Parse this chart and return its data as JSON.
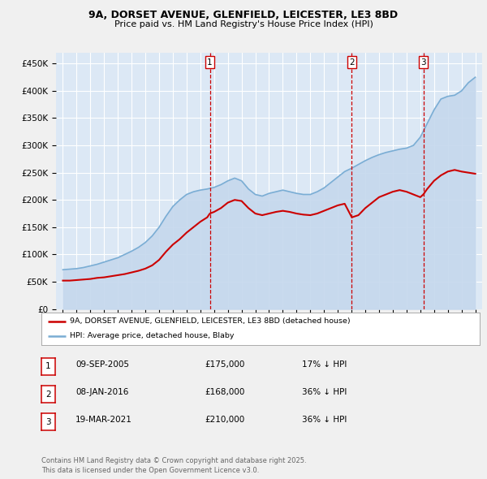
{
  "title1": "9A, DORSET AVENUE, GLENFIELD, LEICESTER, LE3 8BD",
  "title2": "Price paid vs. HM Land Registry's House Price Index (HPI)",
  "ylim": [
    0,
    470000
  ],
  "yticks": [
    0,
    50000,
    100000,
    150000,
    200000,
    250000,
    300000,
    350000,
    400000,
    450000
  ],
  "xlim_start": 1994.5,
  "xlim_end": 2025.5,
  "bg_color": "#dce8f5",
  "fig_bg": "#f0f0f0",
  "grid_color": "#ffffff",
  "red_line_color": "#cc0000",
  "blue_line_color": "#7aadd4",
  "blue_fill_color": "#c5d8ed",
  "vline_color": "#cc0000",
  "vline_dates": [
    2005.69,
    2016.02,
    2021.22
  ],
  "vline_labels": [
    "1",
    "2",
    "3"
  ],
  "legend_label_red": "9A, DORSET AVENUE, GLENFIELD, LEICESTER, LE3 8BD (detached house)",
  "legend_label_blue": "HPI: Average price, detached house, Blaby",
  "table_data": [
    [
      "1",
      "09-SEP-2005",
      "£175,000",
      "17% ↓ HPI"
    ],
    [
      "2",
      "08-JAN-2016",
      "£168,000",
      "36% ↓ HPI"
    ],
    [
      "3",
      "19-MAR-2021",
      "£210,000",
      "36% ↓ HPI"
    ]
  ],
  "footer": "Contains HM Land Registry data © Crown copyright and database right 2025.\nThis data is licensed under the Open Government Licence v3.0.",
  "red_prices": [
    [
      1995.0,
      52000
    ],
    [
      1995.5,
      52000
    ],
    [
      1996.0,
      53000
    ],
    [
      1996.5,
      54000
    ],
    [
      1997.0,
      55000
    ],
    [
      1997.5,
      57000
    ],
    [
      1998.0,
      58000
    ],
    [
      1998.5,
      60000
    ],
    [
      1999.0,
      62000
    ],
    [
      1999.5,
      64000
    ],
    [
      2000.0,
      67000
    ],
    [
      2000.5,
      70000
    ],
    [
      2001.0,
      74000
    ],
    [
      2001.5,
      80000
    ],
    [
      2002.0,
      90000
    ],
    [
      2002.5,
      105000
    ],
    [
      2003.0,
      118000
    ],
    [
      2003.5,
      128000
    ],
    [
      2004.0,
      140000
    ],
    [
      2004.5,
      150000
    ],
    [
      2005.0,
      160000
    ],
    [
      2005.5,
      168000
    ],
    [
      2005.69,
      175000
    ],
    [
      2006.0,
      178000
    ],
    [
      2006.5,
      185000
    ],
    [
      2007.0,
      195000
    ],
    [
      2007.5,
      200000
    ],
    [
      2008.0,
      198000
    ],
    [
      2008.5,
      185000
    ],
    [
      2009.0,
      175000
    ],
    [
      2009.5,
      172000
    ],
    [
      2010.0,
      175000
    ],
    [
      2010.5,
      178000
    ],
    [
      2011.0,
      180000
    ],
    [
      2011.5,
      178000
    ],
    [
      2012.0,
      175000
    ],
    [
      2012.5,
      173000
    ],
    [
      2013.0,
      172000
    ],
    [
      2013.5,
      175000
    ],
    [
      2014.0,
      180000
    ],
    [
      2014.5,
      185000
    ],
    [
      2015.0,
      190000
    ],
    [
      2015.5,
      193000
    ],
    [
      2016.02,
      168000
    ],
    [
      2016.5,
      172000
    ],
    [
      2017.0,
      185000
    ],
    [
      2017.5,
      195000
    ],
    [
      2018.0,
      205000
    ],
    [
      2018.5,
      210000
    ],
    [
      2019.0,
      215000
    ],
    [
      2019.5,
      218000
    ],
    [
      2020.0,
      215000
    ],
    [
      2020.5,
      210000
    ],
    [
      2021.0,
      205000
    ],
    [
      2021.22,
      210000
    ],
    [
      2021.5,
      220000
    ],
    [
      2022.0,
      235000
    ],
    [
      2022.5,
      245000
    ],
    [
      2023.0,
      252000
    ],
    [
      2023.5,
      255000
    ],
    [
      2024.0,
      252000
    ],
    [
      2024.5,
      250000
    ],
    [
      2025.0,
      248000
    ]
  ],
  "blue_prices": [
    [
      1995.0,
      72000
    ],
    [
      1995.5,
      73000
    ],
    [
      1996.0,
      74000
    ],
    [
      1996.5,
      76000
    ],
    [
      1997.0,
      79000
    ],
    [
      1997.5,
      82000
    ],
    [
      1998.0,
      86000
    ],
    [
      1998.5,
      90000
    ],
    [
      1999.0,
      94000
    ],
    [
      1999.5,
      100000
    ],
    [
      2000.0,
      106000
    ],
    [
      2000.5,
      113000
    ],
    [
      2001.0,
      122000
    ],
    [
      2001.5,
      134000
    ],
    [
      2002.0,
      150000
    ],
    [
      2002.5,
      170000
    ],
    [
      2003.0,
      188000
    ],
    [
      2003.5,
      200000
    ],
    [
      2004.0,
      210000
    ],
    [
      2004.5,
      215000
    ],
    [
      2005.0,
      218000
    ],
    [
      2005.5,
      220000
    ],
    [
      2006.0,
      223000
    ],
    [
      2006.5,
      228000
    ],
    [
      2007.0,
      235000
    ],
    [
      2007.5,
      240000
    ],
    [
      2008.0,
      235000
    ],
    [
      2008.5,
      220000
    ],
    [
      2009.0,
      210000
    ],
    [
      2009.5,
      207000
    ],
    [
      2010.0,
      212000
    ],
    [
      2010.5,
      215000
    ],
    [
      2011.0,
      218000
    ],
    [
      2011.5,
      215000
    ],
    [
      2012.0,
      212000
    ],
    [
      2012.5,
      210000
    ],
    [
      2013.0,
      210000
    ],
    [
      2013.5,
      215000
    ],
    [
      2014.0,
      222000
    ],
    [
      2014.5,
      232000
    ],
    [
      2015.0,
      242000
    ],
    [
      2015.5,
      252000
    ],
    [
      2016.0,
      258000
    ],
    [
      2016.5,
      265000
    ],
    [
      2017.0,
      272000
    ],
    [
      2017.5,
      278000
    ],
    [
      2018.0,
      283000
    ],
    [
      2018.5,
      287000
    ],
    [
      2019.0,
      290000
    ],
    [
      2019.5,
      293000
    ],
    [
      2020.0,
      295000
    ],
    [
      2020.5,
      300000
    ],
    [
      2021.0,
      315000
    ],
    [
      2021.5,
      340000
    ],
    [
      2022.0,
      365000
    ],
    [
      2022.5,
      385000
    ],
    [
      2023.0,
      390000
    ],
    [
      2023.5,
      392000
    ],
    [
      2024.0,
      400000
    ],
    [
      2024.5,
      415000
    ],
    [
      2025.0,
      425000
    ]
  ]
}
